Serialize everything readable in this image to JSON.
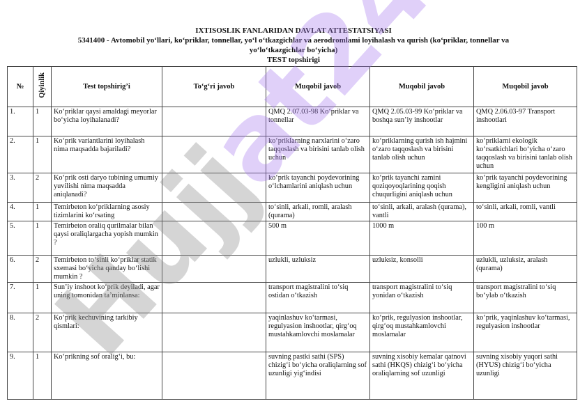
{
  "document": {
    "title": "IXTISOSLIK FANLARIDAN DAVLAT ATTESTATSIYASI",
    "subtitle_line1": "5341400 - Avtomobil yo‘llari, ko‘priklar, tonnellar, yo‘l o‘tkazgichlar va aerodromlami loyihalash va qurish (ko‘priklar, tonnellar va",
    "subtitle_line2": "yo‘lo‘tkazgichlar bo‘yicha)",
    "section": "TEST topshirigi"
  },
  "watermark": {
    "text": "Hujjat24",
    "colors": [
      "#9e9e9e",
      "#b9a2f0"
    ]
  },
  "table": {
    "headers": [
      "№",
      "Qiyinlik",
      "Test topshirig’i",
      "To‘g‘ri javob",
      "Muqobil javob",
      "Muqobil javob",
      "Muqobil javob"
    ],
    "rows": [
      {
        "num": "1.",
        "level": "1",
        "question": "Ko‘priklar qaysi amaldagi meyorlar bo‘yicha loyihalanadi?",
        "correct": "",
        "alt1": "QMQ 2.07.03-98 Ko‘priklar va tonnellar",
        "alt2": "QMQ 2.05.03-99 Ko‘priklar va boshqa sun’iy inshootlar",
        "alt3": "QMQ 2.06.03-97 Transport inshootlari"
      },
      {
        "num": "2.",
        "level": "1",
        "question": "Ko‘prik variantlarini loyihalash nima maqsadda bajariladi?",
        "correct": "",
        "alt1": "ko‘priklarning narxlarini o‘zaro taqqoslash va birisini tanlab olish uchun",
        "alt2": "ko‘priklarning qurish ish hajmini  o‘zaro taqqoslash va birisini tanlab olish uchun",
        "alt3": "ko‘priklarni ekologik ko‘rsatkichlari bo‘yicha o‘zaro taqqoslash va birisini tanlab olish uchun"
      },
      {
        "num": "3.",
        "level": "2",
        "question": "Ko‘prik osti daryo tubining umumiy yuvilishi nima maqsadda aniqlanadi?",
        "correct": "",
        "alt1": "ko‘prik tayanchi poydevorining o‘lchamlarini aniqlash uchun",
        "alt2": "ko‘prik tayanchi zamini qoziqoyoqlarining qoqish chuqurligini aniqlash uchun",
        "alt3": "ko‘prik tayanchi poydevorining kengligini aniqlash uchun"
      },
      {
        "num": "4.",
        "level": "1",
        "question": "Temirbeton ko‘priklarning asosiy tizimlarini ko‘rsating",
        "correct": "",
        "alt1": "to‘sinli, arkali, romli, aralash (qurama)",
        "alt2": "to‘sinli, arkali, aralash (qurama), vantli",
        "alt3": "to‘sinli, arkali, romli, vantli"
      },
      {
        "num": "5.",
        "level": "1",
        "question": "Temirbeton oraliq qurilmalar bilan qaysi oraliqlargacha yopish mumkin ?",
        "correct": "",
        "alt1": "500 m",
        "alt2": "1000 m",
        "alt3": "100 m"
      },
      {
        "num": "6.",
        "level": "2",
        "question": "Temirbeton to‘sinli ko‘priklar statik sxemasi bo‘yicha qanday bo‘lishi mumkin ?",
        "correct": "",
        "alt1": "uzlukli, uzluksiz",
        "alt2": "uzluksiz, konsolli",
        "alt3": "uzlukli, uzluksiz, aralash (qurama)"
      },
      {
        "num": "7.",
        "level": "1",
        "question": "Sun’iy inshoot ko‘prik deyiladi, agar uning tomonidan ta’minlansa:",
        "correct": "",
        "alt1": "transport magistralini to‘siq ostidan o‘tkazish",
        "alt2": "transport magistralini to‘siq yonidan o‘tkazish",
        "alt3": "transport magistralini to‘siq bo‘ylab o‘tkazish"
      },
      {
        "num": "8.",
        "level": "2",
        "question": "Ko‘prik kechuvining tarkibiy qismlari:",
        "correct": "",
        "alt1": "yaqinlashuv ko‘tarmasi, regulyasion inshootlar, qirg‘oq mustahkamlovchi moslamalar",
        "alt2": "ko‘prik, regulyasion inshootlar, qirg‘oq mustahkamlovchi moslamalar",
        "alt3": "ko‘prik, yaqinlashuv ko‘tarmasi, regulyasion inshootlar"
      },
      {
        "num": "9.",
        "level": "1",
        "question": "Ko‘prikning sof oralig‘i, bu:",
        "correct": "",
        "alt1": "suvning pastki sathi (SPS) chizig‘i bo‘yicha oraliqlarning sof uzunligi yig‘indisi",
        "alt2": "suvning xisobiy kemalar qatnovi  sathi (HKQS) chizig‘i bo‘yicha oraliqlarning sof uzunligi",
        "alt3": "suvning xisobiy yuqori sathi (HYUS) chizig‘i bo‘yicha uzunligi"
      }
    ]
  }
}
